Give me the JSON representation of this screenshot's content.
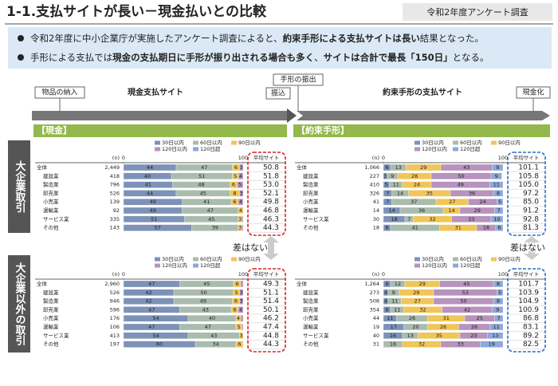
{
  "header": {
    "title": "1-1.支払サイトが長い－現金払いとの比較",
    "tag": "令和2年度アンケート調査"
  },
  "bullets": [
    {
      "parts": [
        {
          "text": "令和2年度に中小企業庁が実施したアンケート調査によると、",
          "bold": false
        },
        {
          "text": "約束手形による支払サイトは長い",
          "bold": true
        },
        {
          "text": "結果となった。",
          "bold": false
        }
      ]
    },
    {
      "parts": [
        {
          "text": "手形による支払では",
          "bold": false
        },
        {
          "text": "現金の支払期日に手形が振り出される場合も多く",
          "bold": true
        },
        {
          "text": "、",
          "bold": false
        },
        {
          "text": "サイトは合計で最長「150日」",
          "bold": true
        },
        {
          "text": "となる。",
          "bold": false
        }
      ]
    }
  ],
  "timeline": {
    "delivery": "物品の納入",
    "cash_site": "現金支払サイト",
    "issue": "手形の振出",
    "transfer": "振込",
    "note_site": "約束手形の支払サイト",
    "cashing": "現金化"
  },
  "sections": [
    "【現金】",
    "【約束手形】"
  ],
  "row_labels": [
    "大企業取引",
    "大企業以外の取引"
  ],
  "annotations": [
    "差はない",
    "差はない"
  ],
  "chart_data": [
    {
      "type": "bar",
      "stacked": true,
      "frame_color": "#e02020",
      "categories": [
        "全体",
        "建設業",
        "製造業",
        "卸売業",
        "小売業",
        "運輸業",
        "サービス業",
        "その他"
      ],
      "n_label": "(n)",
      "n": [
        "2,449",
        "418",
        "796",
        "526",
        "139",
        "92",
        "335",
        "143"
      ],
      "avg_label": "平均サイト",
      "avg": [
        "50.8",
        "51.8",
        "53.0",
        "52.1",
        "49.8",
        "46.8",
        "46.3",
        "44.3"
      ],
      "xlim": [
        0,
        100
      ],
      "xticks": [
        0,
        100
      ],
      "series": [
        {
          "name": "30日以内",
          "color": "#7d92b8",
          "values": [
            44,
            40,
            41,
            44,
            49,
            49,
            51,
            57
          ]
        },
        {
          "name": "60日以内",
          "color": "#a9bcae",
          "values": [
            47,
            51,
            48,
            45,
            41,
            47,
            45,
            39
          ]
        },
        {
          "name": "90日以内",
          "color": "#f0c65a",
          "values": [
            6,
            5,
            6,
            8,
            6,
            4,
            3,
            3
          ]
        },
        {
          "name": "120日以内",
          "color": "#b793bd",
          "values": [
            3,
            4,
            5,
            3,
            4,
            0,
            1,
            1
          ]
        },
        {
          "name": "120日超",
          "color": "#8ea8da",
          "values": [
            0,
            0,
            0,
            0,
            0,
            0,
            0,
            0
          ]
        }
      ]
    },
    {
      "type": "bar",
      "stacked": true,
      "frame_color": "#2a6fc0",
      "categories": [
        "全体",
        "建設業",
        "製造業",
        "卸売業",
        "小売業",
        "運輸業",
        "サービス業",
        "その他"
      ],
      "n_label": "(n)",
      "n": [
        "1,066",
        "227",
        "410",
        "326",
        "41",
        "14",
        "30",
        "18"
      ],
      "avg_label": "平均サイト",
      "avg": [
        "101.1",
        "105.8",
        "105.0",
        "97.2",
        "85.0",
        "91.2",
        "92.8",
        "81.3"
      ],
      "xlim": [
        0,
        100
      ],
      "xticks": [
        0,
        100
      ],
      "series": [
        {
          "name": "30日以内",
          "color": "#7d92b8",
          "values": [
            6,
            3,
            5,
            7,
            7,
            14,
            18,
            6
          ]
        },
        {
          "name": "60日以内",
          "color": "#a9bcae",
          "values": [
            13,
            9,
            11,
            14,
            37,
            36,
            7,
            41
          ]
        },
        {
          "name": "90日以内",
          "color": "#f0c65a",
          "values": [
            29,
            28,
            24,
            35,
            27,
            14,
            32,
            31
          ]
        },
        {
          "name": "120日以内",
          "color": "#b793bd",
          "values": [
            43,
            50,
            49,
            36,
            24,
            29,
            33,
            16
          ]
        },
        {
          "name": "120日超",
          "color": "#8ea8da",
          "values": [
            9,
            9,
            11,
            8,
            5,
            7,
            10,
            6
          ]
        }
      ]
    },
    {
      "type": "bar",
      "stacked": true,
      "frame_color": "#e02020",
      "categories": [
        "全体",
        "建設業",
        "製造業",
        "卸売業",
        "小売業",
        "運輸業",
        "サービス業",
        "その他"
      ],
      "n_label": "(n)",
      "n": [
        "2,960",
        "526",
        "946",
        "596",
        "176",
        "106",
        "413",
        "197"
      ],
      "avg_label": "平均サイト",
      "avg": [
        "49.3",
        "51.1",
        "51.4",
        "50.1",
        "46.2",
        "47.4",
        "44.8",
        "44.3"
      ],
      "xlim": [
        0,
        100
      ],
      "xticks": [
        0,
        100
      ],
      "series": [
        {
          "name": "30日以内",
          "color": "#7d92b8",
          "values": [
            47,
            42,
            42,
            47,
            54,
            47,
            54,
            60
          ]
        },
        {
          "name": "60日以内",
          "color": "#a9bcae",
          "values": [
            45,
            50,
            49,
            43,
            40,
            47,
            43,
            34
          ]
        },
        {
          "name": "90日以内",
          "color": "#f0c65a",
          "values": [
            6,
            5,
            6,
            6,
            4,
            5,
            3,
            6
          ]
        },
        {
          "name": "120日以内",
          "color": "#b793bd",
          "values": [
            2,
            3,
            3,
            4,
            2,
            1,
            0,
            0
          ]
        },
        {
          "name": "120日超",
          "color": "#8ea8da",
          "values": [
            0,
            0,
            0,
            0,
            0,
            0,
            0,
            0
          ]
        }
      ]
    },
    {
      "type": "bar",
      "stacked": true,
      "frame_color": "#2a6fc0",
      "categories": [
        "全体",
        "建設業",
        "製造業",
        "卸売業",
        "小売業",
        "運輸業",
        "サービス業",
        "その他"
      ],
      "n_label": "(n)",
      "n": [
        "1,264",
        "273",
        "508",
        "354",
        "44",
        "19",
        "40",
        "31"
      ],
      "avg_label": "平均サイト",
      "avg": [
        "101.7",
        "103.9",
        "104.9",
        "100.9",
        "86.8",
        "83.1",
        "89.2",
        "82.5"
      ],
      "xlim": [
        0,
        100
      ],
      "xticks": [
        0,
        100
      ],
      "series": [
        {
          "name": "30日以内",
          "color": "#7d92b8",
          "values": [
            6,
            4,
            4,
            6,
            11,
            17,
            16,
            0
          ]
        },
        {
          "name": "60日以内",
          "color": "#a9bcae",
          "values": [
            12,
            9,
            11,
            11,
            26,
            20,
            13,
            16
          ]
        },
        {
          "name": "90日以内",
          "color": "#f0c65a",
          "values": [
            29,
            29,
            27,
            32,
            31,
            26,
            35,
            32
          ]
        },
        {
          "name": "120日以内",
          "color": "#b793bd",
          "values": [
            45,
            53,
            50,
            42,
            25,
            26,
            23,
            33
          ]
        },
        {
          "name": "120日超",
          "color": "#8ea8da",
          "values": [
            8,
            5,
            8,
            9,
            7,
            11,
            13,
            19
          ]
        }
      ]
    }
  ]
}
